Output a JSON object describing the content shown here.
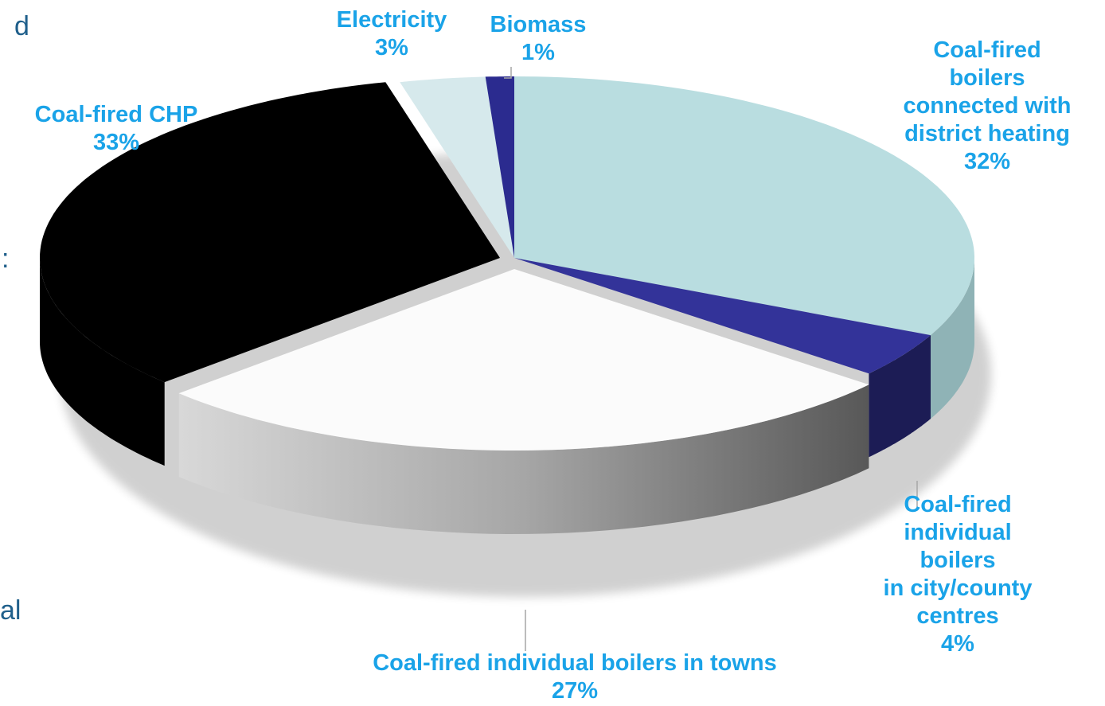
{
  "chart_data": {
    "type": "pie",
    "title": "",
    "style": "3d-exploded",
    "slices": [
      {
        "label_lines": [
          "Coal-fired",
          "boilers",
          "connected with",
          "district heating"
        ],
        "pct_label": "32%",
        "value": 32,
        "color": "#b9dde0",
        "side_color": "#8fb3b6"
      },
      {
        "label_lines": [
          "Coal-fired",
          "individual",
          "boilers",
          "in city/county",
          "centres"
        ],
        "pct_label": "4%",
        "value": 4,
        "color": "#333399",
        "side_color": "#1c1c55"
      },
      {
        "label_lines": [
          "Coal-fired individual boilers in towns"
        ],
        "pct_label": "27%",
        "value": 27,
        "color": "#fbfbfb",
        "side_color": "#9a9a9a"
      },
      {
        "label_lines": [
          "Coal-fired CHP"
        ],
        "pct_label": "33%",
        "value": 33,
        "color": "#000000",
        "side_color": "#000000"
      },
      {
        "label_lines": [
          "Electricity"
        ],
        "pct_label": "3%",
        "value": 3,
        "color": "#d6e9ec",
        "side_color": "#a9c3c6"
      },
      {
        "label_lines": [
          "Biomass"
        ],
        "pct_label": "1%",
        "value": 1,
        "color": "#2b2b8f",
        "side_color": "#1a1a5a"
      }
    ],
    "label_color": "#1aa3e8"
  },
  "edge_text": {
    "top": "d",
    "middle": ":",
    "bottom": "al"
  }
}
